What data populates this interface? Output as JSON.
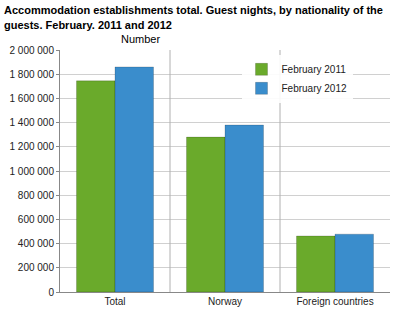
{
  "chart_data": {
    "type": "bar",
    "title": [
      "Accommodation establishments total. Guest nights, by nationality of the",
      "guests. February. 2011 and 2012"
    ],
    "ylabel": "Number",
    "categories": [
      "Total",
      "Norway",
      "Foreign countries"
    ],
    "series": [
      {
        "name": "February 2011",
        "color": "#6aaa2b",
        "values": [
          1745000,
          1280000,
          463000
        ]
      },
      {
        "name": "February 2012",
        "color": "#3a8dcc",
        "values": [
          1860000,
          1380000,
          478000
        ]
      }
    ],
    "ylim": [
      0,
      2000000
    ],
    "yticks": [
      0,
      {
        "value": 200000,
        "label": "200 000"
      },
      {
        "value": 400000,
        "label": "400 000"
      },
      {
        "value": 600000,
        "label": "600 000"
      },
      {
        "value": 800000,
        "label": "800 000"
      },
      {
        "value": 1000000,
        "label": "1 000 000"
      },
      {
        "value": 1200000,
        "label": "1 200 000"
      },
      {
        "value": 1400000,
        "label": "1 400 000"
      },
      {
        "value": 1600000,
        "label": "1 600 000"
      },
      {
        "value": 1800000,
        "label": "1 800 000"
      },
      {
        "value": 2000000,
        "label": "2 000 000"
      }
    ],
    "grid": true,
    "legend": "top-right"
  }
}
